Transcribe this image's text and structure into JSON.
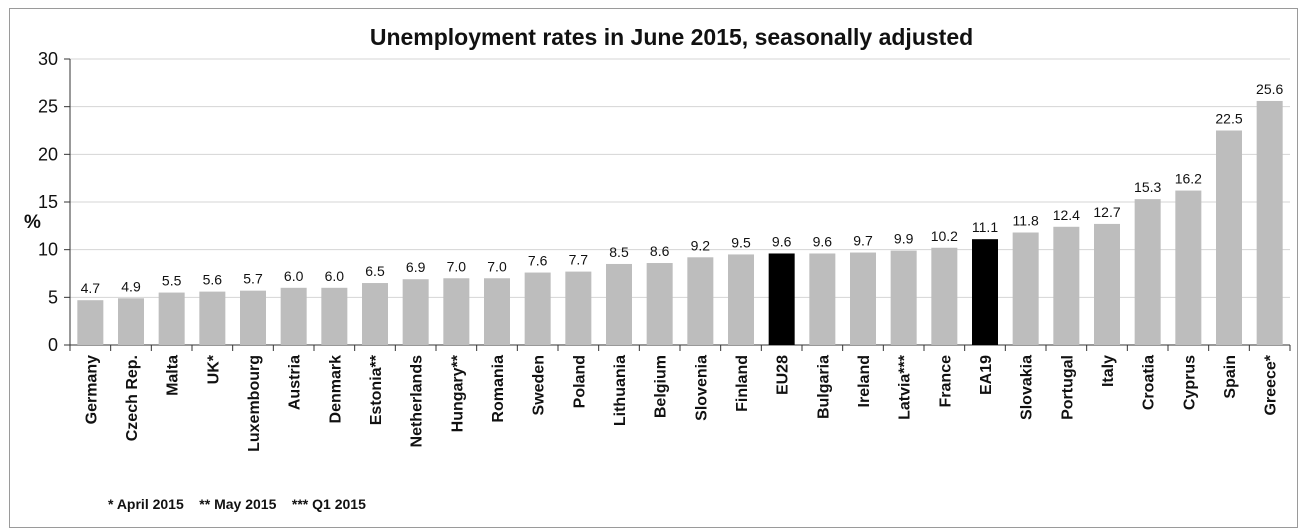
{
  "chart_data": {
    "type": "bar",
    "title": "Unemployment rates in June 2015, seasonally adjusted",
    "ylabel": "%",
    "xlabel": "",
    "ylim": [
      0,
      30
    ],
    "yticks": [
      0,
      5,
      10,
      15,
      20,
      25,
      30
    ],
    "grid": true,
    "categories": [
      "Germany",
      "Czech Rep.",
      "Malta",
      "UK*",
      "Luxembourg",
      "Austria",
      "Denmark",
      "Estonia**",
      "Netherlands",
      "Hungary**",
      "Romania",
      "Sweden",
      "Poland",
      "Lithuania",
      "Belgium",
      "Slovenia",
      "Finland",
      "EU28",
      "Bulgaria",
      "Ireland",
      "Latvia***",
      "France",
      "EA19",
      "Slovakia",
      "Portugal",
      "Italy",
      "Croatia",
      "Cyprus",
      "Spain",
      "Greece*"
    ],
    "values": [
      4.7,
      4.9,
      5.5,
      5.6,
      5.7,
      6.0,
      6.0,
      6.5,
      6.9,
      7.0,
      7.0,
      7.6,
      7.7,
      8.5,
      8.6,
      9.2,
      9.5,
      9.6,
      9.6,
      9.7,
      9.9,
      10.2,
      11.1,
      11.8,
      12.4,
      12.7,
      15.3,
      16.2,
      22.5,
      25.6
    ],
    "value_labels": [
      "4.7",
      "4.9",
      "5.5",
      "5.6",
      "5.7",
      "6.0",
      "6.0",
      "6.5",
      "6.9",
      "7.0",
      "7.0",
      "7.6",
      "7.7",
      "8.5",
      "8.6",
      "9.2",
      "9.5",
      "9.6",
      "9.6",
      "9.7",
      "9.9",
      "10.2",
      "11.1",
      "11.8",
      "12.4",
      "12.7",
      "15.3",
      "16.2",
      "22.5",
      "25.6"
    ],
    "highlighted": [
      "EU28",
      "EA19"
    ],
    "footnote": "* April 2015    ** May 2015    *** Q1 2015"
  },
  "colors": {
    "bar": "#bdbdbd",
    "highlight": "#000000",
    "grid": "#d4d4d4",
    "axis": "#333333",
    "text": "#111111"
  }
}
